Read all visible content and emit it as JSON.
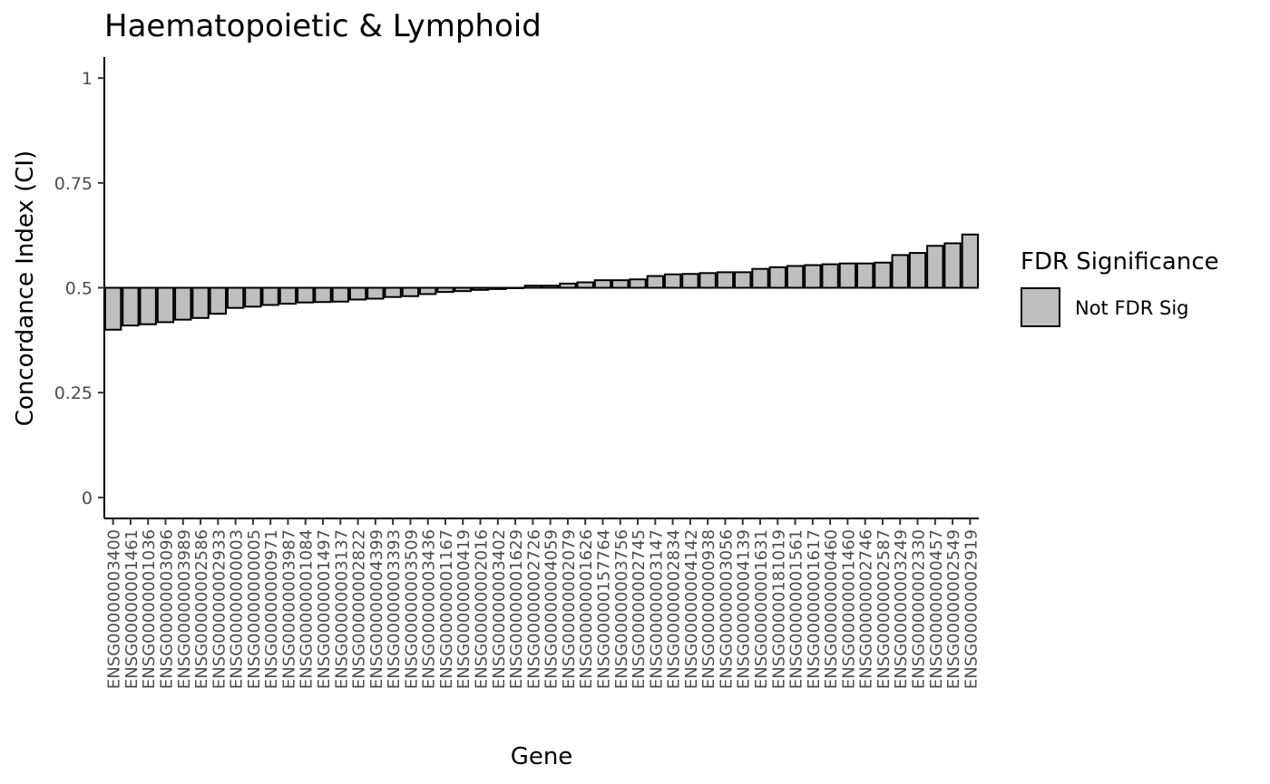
{
  "chart_data": {
    "type": "bar",
    "title": "Haematopoietic & Lymphoid",
    "xlabel": "Gene",
    "ylabel": "Concordance Index (CI)",
    "ylim": [
      -0.05,
      1.05
    ],
    "yticks": [
      0,
      0.25,
      0.5,
      0.75,
      1
    ],
    "ytick_labels": [
      "0",
      "0.25",
      "0.5",
      "0.75",
      "1"
    ],
    "baseline": 0.5,
    "grid": false,
    "legend_placement": "right",
    "legend_title": "FDR Significance",
    "fill_color": "#bebebe",
    "outline_color": "#000000",
    "categories": [
      "ENSG00000003400",
      "ENSG00000001461",
      "ENSG00000001036",
      "ENSG00000003096",
      "ENSG00000003989",
      "ENSG00000002586",
      "ENSG00000002933",
      "ENSG00000000003",
      "ENSG00000000005",
      "ENSG00000000971",
      "ENSG00000003987",
      "ENSG00000001084",
      "ENSG00000001497",
      "ENSG00000003137",
      "ENSG00000002822",
      "ENSG00000004399",
      "ENSG00000003393",
      "ENSG00000003509",
      "ENSG00000003436",
      "ENSG00000001167",
      "ENSG00000000419",
      "ENSG00000002016",
      "ENSG00000003402",
      "ENSG00000001629",
      "ENSG00000002726",
      "ENSG00000004059",
      "ENSG00000002079",
      "ENSG00000001626",
      "ENSG00000157764",
      "ENSG00000003756",
      "ENSG00000002745",
      "ENSG00000003147",
      "ENSG00000002834",
      "ENSG00000004142",
      "ENSG00000000938",
      "ENSG00000003056",
      "ENSG00000004139",
      "ENSG00000001631",
      "ENSG00000181019",
      "ENSG00000001561",
      "ENSG00000001617",
      "ENSG00000000460",
      "ENSG00000001460",
      "ENSG00000002746",
      "ENSG00000002587",
      "ENSG00000003249",
      "ENSG00000002330",
      "ENSG00000000457",
      "ENSG00000002549",
      "ENSG00000002919"
    ],
    "series": [
      {
        "name": "Not FDR Sig",
        "color": "#bebebe",
        "values": [
          0.4,
          0.41,
          0.413,
          0.418,
          0.424,
          0.428,
          0.438,
          0.452,
          0.455,
          0.459,
          0.462,
          0.465,
          0.466,
          0.467,
          0.472,
          0.474,
          0.478,
          0.48,
          0.485,
          0.49,
          0.492,
          0.495,
          0.497,
          0.5,
          0.505,
          0.505,
          0.51,
          0.513,
          0.518,
          0.518,
          0.52,
          0.528,
          0.532,
          0.533,
          0.535,
          0.537,
          0.537,
          0.545,
          0.549,
          0.552,
          0.554,
          0.556,
          0.558,
          0.558,
          0.56,
          0.578,
          0.583,
          0.6,
          0.606,
          0.627
        ]
      }
    ]
  }
}
